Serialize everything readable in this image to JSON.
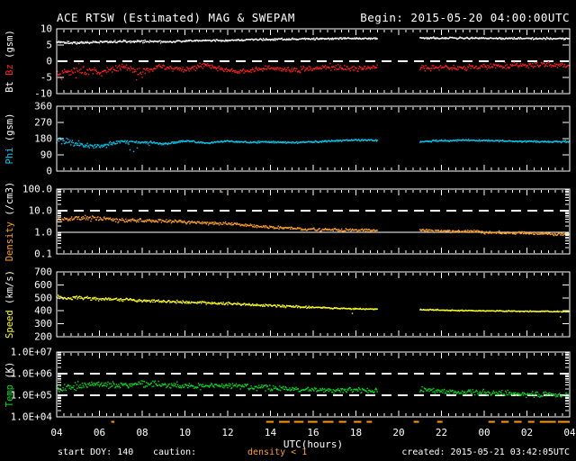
{
  "header": {
    "title": "ACE RTSW (Estimated) MAG & SWEPAM",
    "begin": "Begin: 2015-05-20 04:00:00UTC"
  },
  "footer": {
    "start_doy": "start DOY: 140",
    "caution_label": "caution:",
    "caution_value": "density < 1",
    "created": "created: 2015-05-21 03:42:05UTC"
  },
  "colors": {
    "background": "#000000",
    "frame": "#ffffff",
    "bt": "#ffffff",
    "bz": "#ff2020",
    "phi": "#00c8f0",
    "density": "#ffa028",
    "speed": "#ffff22",
    "temp": "#00dd22",
    "caution": "#ff9900"
  },
  "x_axis": {
    "title": "UTC(hours)",
    "start_hour": 4,
    "end_hour": 28,
    "tick_step_hours": 2,
    "minor_tick_minutes": 20,
    "tick_labels": [
      "04",
      "06",
      "08",
      "10",
      "12",
      "14",
      "16",
      "18",
      "20",
      "22",
      "00",
      "02",
      "04"
    ],
    "data_gap_hours": [
      19,
      21
    ]
  },
  "caution_marks_hours": [
    [
      6.55,
      6.7
    ],
    [
      13.8,
      14.15
    ],
    [
      14.4,
      14.9
    ],
    [
      15.1,
      15.55
    ],
    [
      15.75,
      16.2
    ],
    [
      16.45,
      16.95
    ],
    [
      17.2,
      17.55
    ],
    [
      17.9,
      18.25
    ],
    [
      18.5,
      18.75
    ],
    [
      20.7,
      20.95
    ],
    [
      21.8,
      22.05
    ],
    [
      24.2,
      24.5
    ],
    [
      24.8,
      25.15
    ],
    [
      25.4,
      25.75
    ],
    [
      26.05,
      26.35
    ],
    [
      26.6,
      27.35
    ],
    [
      27.45,
      28.0
    ]
  ],
  "chart_x_hours": [
    4,
    5,
    6,
    7,
    8,
    9,
    10,
    11,
    12,
    13,
    14,
    15,
    16,
    17,
    18,
    19,
    20,
    21,
    22,
    23,
    24,
    25,
    26,
    27,
    28
  ],
  "chart_data": [
    {
      "name": "mag-field",
      "type": "scatter",
      "scale": "linear",
      "ylim": [
        -10,
        10
      ],
      "ylabel_parts": [
        {
          "text": "Bt ",
          "color_key": "bt"
        },
        {
          "text": "Bz",
          "color_key": "bz"
        },
        {
          "text": " (gsm)",
          "color_key": "frame"
        }
      ],
      "yticks": [
        {
          "value": 10,
          "label": "10"
        },
        {
          "value": 5,
          "label": "5"
        },
        {
          "value": 0,
          "label": "0"
        },
        {
          "value": -5,
          "label": "-5"
        },
        {
          "value": -10,
          "label": "-10"
        }
      ],
      "ref_lines": [
        {
          "value": 0,
          "style": "dashed"
        }
      ],
      "series": [
        {
          "name": "Bt",
          "color_key": "bt",
          "values": [
            5.8,
            5.6,
            5.9,
            6.0,
            6.1,
            6.0,
            6.2,
            6.4,
            6.4,
            6.6,
            6.7,
            6.8,
            6.9,
            7.0,
            7.0,
            7.0,
            null,
            7.1,
            7.15,
            7.1,
            7.1,
            7.05,
            7.0,
            7.0,
            6.95
          ]
        },
        {
          "name": "Bz",
          "color_key": "bz",
          "values": [
            -4.5,
            -2.2,
            -3.5,
            -2.0,
            -3.0,
            -1.6,
            -2.6,
            -1.2,
            -2.8,
            -3.2,
            -2.0,
            -2.8,
            -2.2,
            -1.8,
            -2.4,
            -2.0,
            null,
            -2.3,
            -1.9,
            -2.1,
            -1.6,
            -1.4,
            -1.2,
            -1.1,
            -1.2
          ]
        }
      ]
    },
    {
      "name": "phi",
      "type": "scatter",
      "scale": "linear",
      "ylim": [
        0,
        360
      ],
      "ylabel_parts": [
        {
          "text": "Phi",
          "color_key": "phi"
        },
        {
          "text": " (gsm)",
          "color_key": "frame"
        }
      ],
      "yticks": [
        {
          "value": 360,
          "label": "360"
        },
        {
          "value": 270,
          "label": "270"
        },
        {
          "value": 180,
          "label": "180"
        },
        {
          "value": 90,
          "label": "90"
        },
        {
          "value": 0,
          "label": "0"
        }
      ],
      "ref_lines": [],
      "series": [
        {
          "name": "Phi",
          "color_key": "phi",
          "values": [
            175,
            150,
            135,
            165,
            160,
            150,
            168,
            155,
            165,
            160,
            162,
            158,
            162,
            168,
            172,
            170,
            null,
            163,
            168,
            172,
            170,
            167,
            165,
            163,
            163
          ]
        }
      ]
    },
    {
      "name": "density",
      "type": "scatter",
      "scale": "log",
      "ylim": [
        0.1,
        100
      ],
      "ylabel_parts": [
        {
          "text": "Density",
          "color_key": "density"
        },
        {
          "text": " (/cm3)",
          "color_key": "frame"
        }
      ],
      "yticks": [
        {
          "value": 100,
          "label": "100.0"
        },
        {
          "value": 10,
          "label": "10.0"
        },
        {
          "value": 1,
          "label": "1.0"
        },
        {
          "value": 0.1,
          "label": "0.1"
        }
      ],
      "ref_lines": [
        {
          "value": 10,
          "style": "dashed"
        },
        {
          "value": 1,
          "style": "solid"
        }
      ],
      "series": [
        {
          "name": "Density",
          "color_key": "density",
          "values": [
            3.8,
            4.5,
            4.2,
            3.6,
            3.4,
            3.3,
            3.0,
            2.7,
            2.5,
            2.1,
            1.7,
            1.5,
            1.35,
            1.3,
            1.25,
            1.2,
            null,
            1.2,
            1.15,
            1.1,
            1.0,
            0.95,
            0.9,
            0.85,
            0.8
          ]
        }
      ]
    },
    {
      "name": "speed",
      "type": "scatter",
      "scale": "linear",
      "ylim": [
        200,
        700
      ],
      "ylabel_parts": [
        {
          "text": "Speed",
          "color_key": "speed"
        },
        {
          "text": " (km/s)",
          "color_key": "frame"
        }
      ],
      "yticks": [
        {
          "value": 700,
          "label": "700"
        },
        {
          "value": 600,
          "label": "600"
        },
        {
          "value": 500,
          "label": "500"
        },
        {
          "value": 400,
          "label": "400"
        },
        {
          "value": 300,
          "label": "300"
        },
        {
          "value": 200,
          "label": "200"
        }
      ],
      "ref_lines": [],
      "series": [
        {
          "name": "Speed",
          "color_key": "speed",
          "values": [
            505,
            500,
            492,
            486,
            478,
            472,
            467,
            461,
            455,
            448,
            441,
            432,
            426,
            420,
            415,
            412,
            null,
            408,
            405,
            402,
            400,
            398,
            396,
            395,
            393
          ]
        }
      ]
    },
    {
      "name": "temp",
      "type": "scatter",
      "scale": "log",
      "ylim": [
        10000,
        10000000
      ],
      "ylabel_parts": [
        {
          "text": "Temp",
          "color_key": "temp"
        },
        {
          "text": " (K)",
          "color_key": "frame"
        }
      ],
      "yticks": [
        {
          "value": 10000000,
          "label": "1.0E+07"
        },
        {
          "value": 1000000,
          "label": "1.0E+06"
        },
        {
          "value": 100000,
          "label": "1.0E+05"
        },
        {
          "value": 10000,
          "label": "1.0E+04"
        }
      ],
      "ref_lines": [
        {
          "value": 1000000,
          "style": "dashed"
        },
        {
          "value": 100000,
          "style": "dashed"
        }
      ],
      "series": [
        {
          "name": "Temp",
          "color_key": "temp",
          "values": [
            200000,
            260000,
            320000,
            300000,
            340000,
            300000,
            280000,
            260000,
            300000,
            240000,
            220000,
            200000,
            180000,
            160000,
            170000,
            160000,
            null,
            180000,
            160000,
            140000,
            130000,
            120000,
            110000,
            105000,
            100000
          ]
        }
      ]
    }
  ]
}
